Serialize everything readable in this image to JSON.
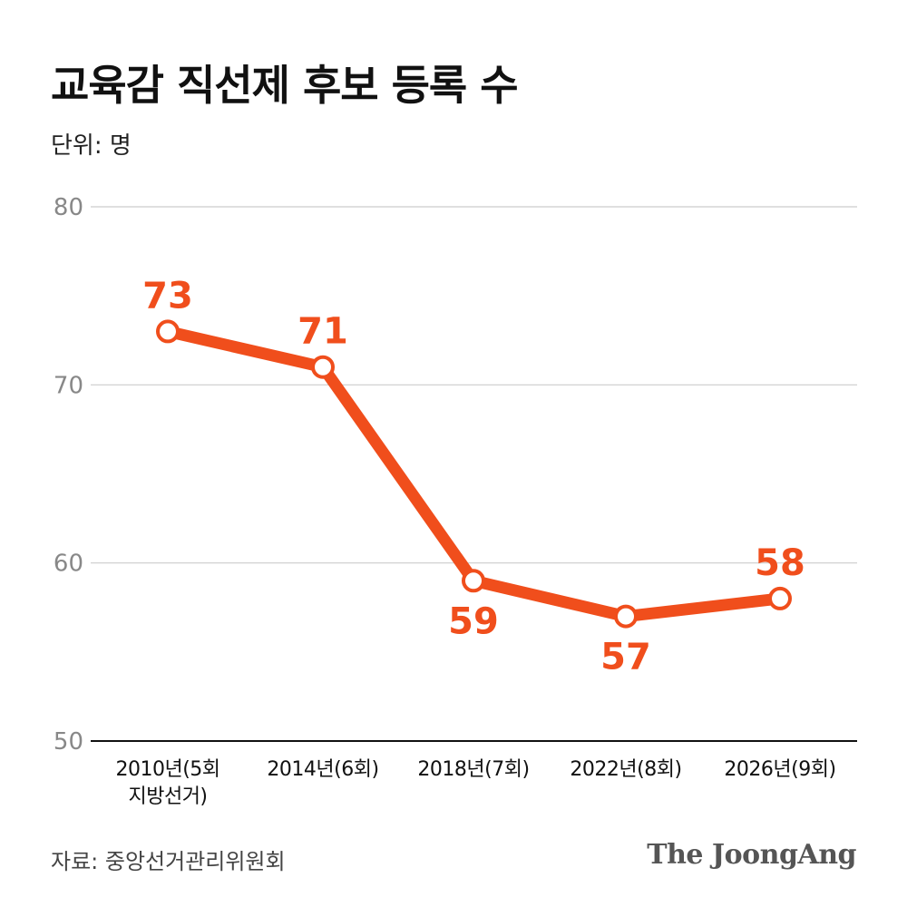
{
  "title": "교육감 직선제 후보 등록 수",
  "unit_label": "단위: 명",
  "source": "자료: 중앙선거관리위원회",
  "brand": "The JoongAng",
  "colors": {
    "line": "#f04e1c",
    "label": "#f04e1c",
    "grid": "#cccccc",
    "axis": "#111111",
    "tick_text": "#888888"
  },
  "chart_data": {
    "type": "line",
    "categories": [
      [
        "2010년(5회",
        "지방선거)"
      ],
      [
        "2014년(6회)"
      ],
      [
        "2018년(7회)"
      ],
      [
        "2022년(8회)"
      ],
      [
        "2026년(9회)"
      ]
    ],
    "series": [
      {
        "values": [
          73,
          71,
          59,
          57,
          58
        ]
      }
    ],
    "ylim": [
      50,
      80
    ],
    "yticks": [
      50,
      60,
      70,
      80
    ],
    "label_placement": [
      "above",
      "above",
      "below",
      "below",
      "above"
    ],
    "grid": true,
    "markers": "hollow-circle"
  }
}
